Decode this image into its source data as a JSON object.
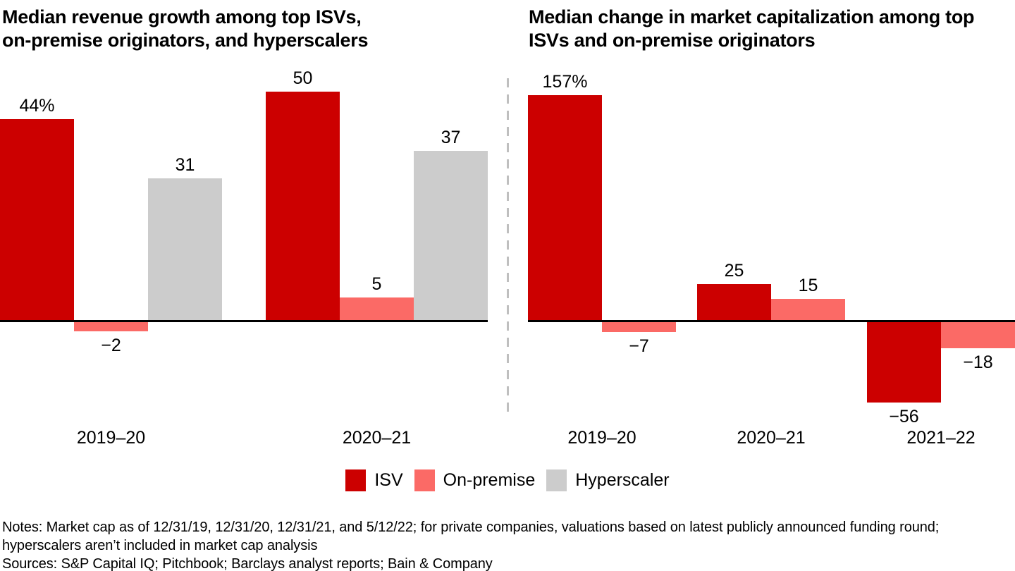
{
  "titles": {
    "left": [
      "Median revenue growth among top ISVs,",
      "on-premise originators, and hyperscalers"
    ],
    "right": [
      "Median change in market capitalization among top",
      "ISVs and on-premise originators"
    ]
  },
  "chart_data": [
    {
      "type": "bar",
      "title": "Median revenue growth among top ISVs, on-premise originators, and hyperscalers",
      "unit": "%",
      "categories": [
        "2019–20",
        "2020–21"
      ],
      "series": [
        {
          "name": "ISV",
          "color": "#cc0000",
          "values": [
            44,
            50
          ],
          "labels": [
            "44%",
            "50"
          ]
        },
        {
          "name": "On-premise",
          "color": "#fb6a66",
          "values": [
            -2,
            5
          ],
          "labels": [
            "−2",
            "5"
          ]
        },
        {
          "name": "Hyperscaler",
          "color": "#cccccc",
          "values": [
            31,
            37
          ],
          "labels": [
            "31",
            "37"
          ]
        }
      ],
      "grid": false,
      "value_labels": true,
      "ylim": [
        -10,
        55
      ],
      "legend_position": "bottom-shared"
    },
    {
      "type": "bar",
      "title": "Median change in market capitalization among top ISVs and on-premise originators",
      "unit": "%",
      "categories": [
        "2019–20",
        "2020–21",
        "2021–22"
      ],
      "series": [
        {
          "name": "ISV",
          "color": "#cc0000",
          "values": [
            157,
            25,
            -56
          ],
          "labels": [
            "157%",
            "25",
            "−56"
          ]
        },
        {
          "name": "On-premise",
          "color": "#fb6a66",
          "values": [
            -7,
            15,
            -18
          ],
          "labels": [
            "−7",
            "15",
            "−18"
          ]
        }
      ],
      "grid": false,
      "value_labels": true,
      "ylim": [
        -70,
        165
      ],
      "legend_position": "bottom-shared"
    }
  ],
  "legend": {
    "items": [
      {
        "label": "ISV",
        "color": "#cc0000"
      },
      {
        "label": "On-premise",
        "color": "#fb6a66"
      },
      {
        "label": "Hyperscaler",
        "color": "#cccccc"
      }
    ]
  },
  "colors": {
    "isv_red": "#cc0000",
    "on_premise_salmon": "#fb6a66",
    "hyperscaler_gray": "#cccccc",
    "axis_black": "#000000",
    "divider_gray": "#bfbfbf",
    "text_black": "#000000"
  },
  "notes": {
    "lines": [
      "Notes: Market cap as of 12/31/19, 12/31/20, 12/31/21, and 5/12/22; for private companies, valuations based on latest publicly announced funding round;",
      "hyperscalers aren’t included in market cap analysis",
      "Sources: S&P Capital IQ; Pitchbook; Barclays analyst reports; Bain & Company"
    ]
  }
}
